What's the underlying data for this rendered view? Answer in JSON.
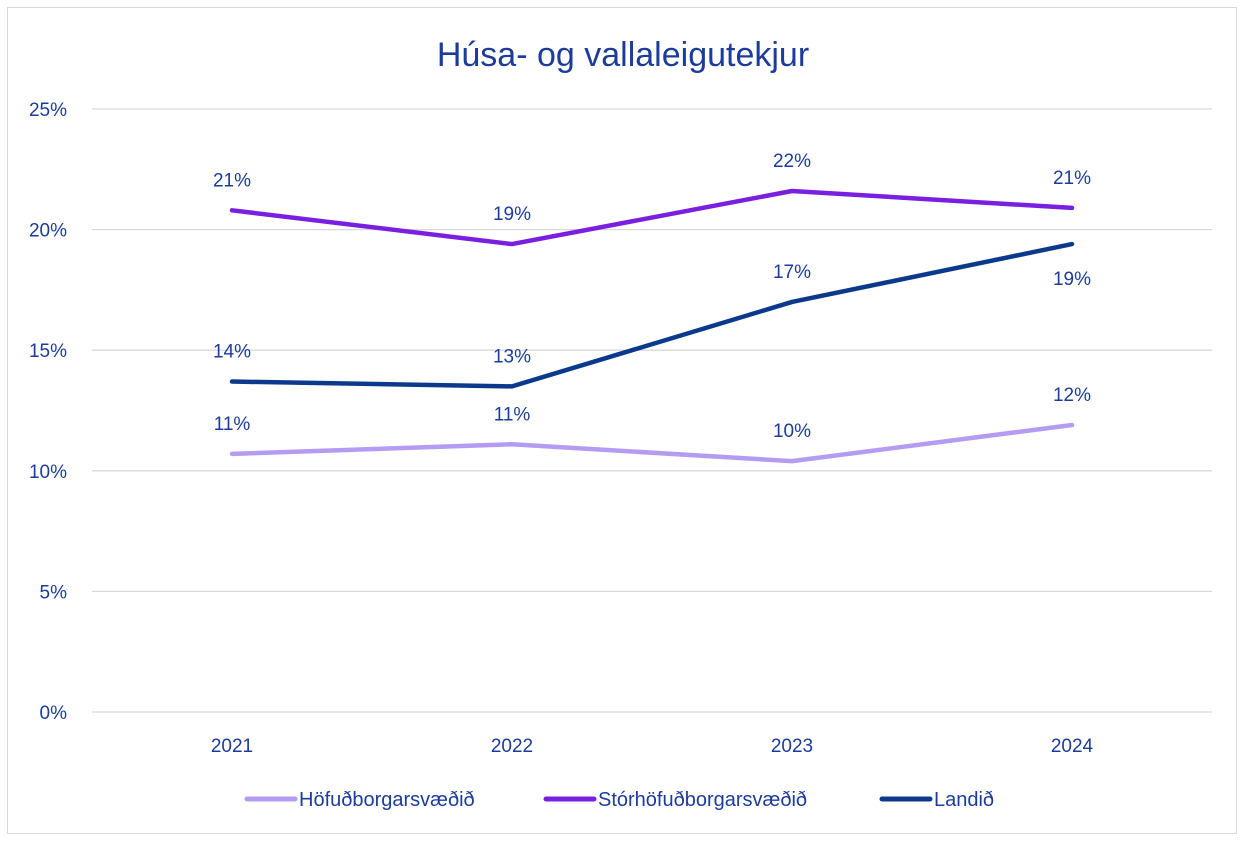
{
  "chart_data": {
    "type": "line",
    "title": "Húsa- og vallaleigutekjur",
    "categories": [
      "2021",
      "2022",
      "2023",
      "2024"
    ],
    "ylim": [
      0,
      25
    ],
    "yticks": [
      "0%",
      "5%",
      "10%",
      "15%",
      "20%",
      "25%"
    ],
    "ytick_values": [
      0,
      5,
      10,
      15,
      20,
      25
    ],
    "grid": true,
    "legend_position": "bottom",
    "series": [
      {
        "name": "Höfuðborgarsvæðið",
        "color": "#b49cf3",
        "values": [
          10.7,
          11.1,
          10.4,
          11.9
        ],
        "labels": [
          "11%",
          "11%",
          "10%",
          "12%"
        ],
        "label_pos": "above"
      },
      {
        "name": "Stórhöfuðborgarsvæðið",
        "color": "#7a1fe0",
        "values": [
          20.8,
          19.4,
          21.6,
          20.9
        ],
        "labels": [
          "21%",
          "19%",
          "22%",
          "21%"
        ],
        "label_pos": "above"
      },
      {
        "name": "Landið",
        "color": "#0b3a8c",
        "values": [
          13.7,
          13.5,
          17.0,
          19.4
        ],
        "labels": [
          "14%",
          "13%",
          "17%",
          "19%"
        ],
        "label_pos": "mixed"
      }
    ]
  }
}
